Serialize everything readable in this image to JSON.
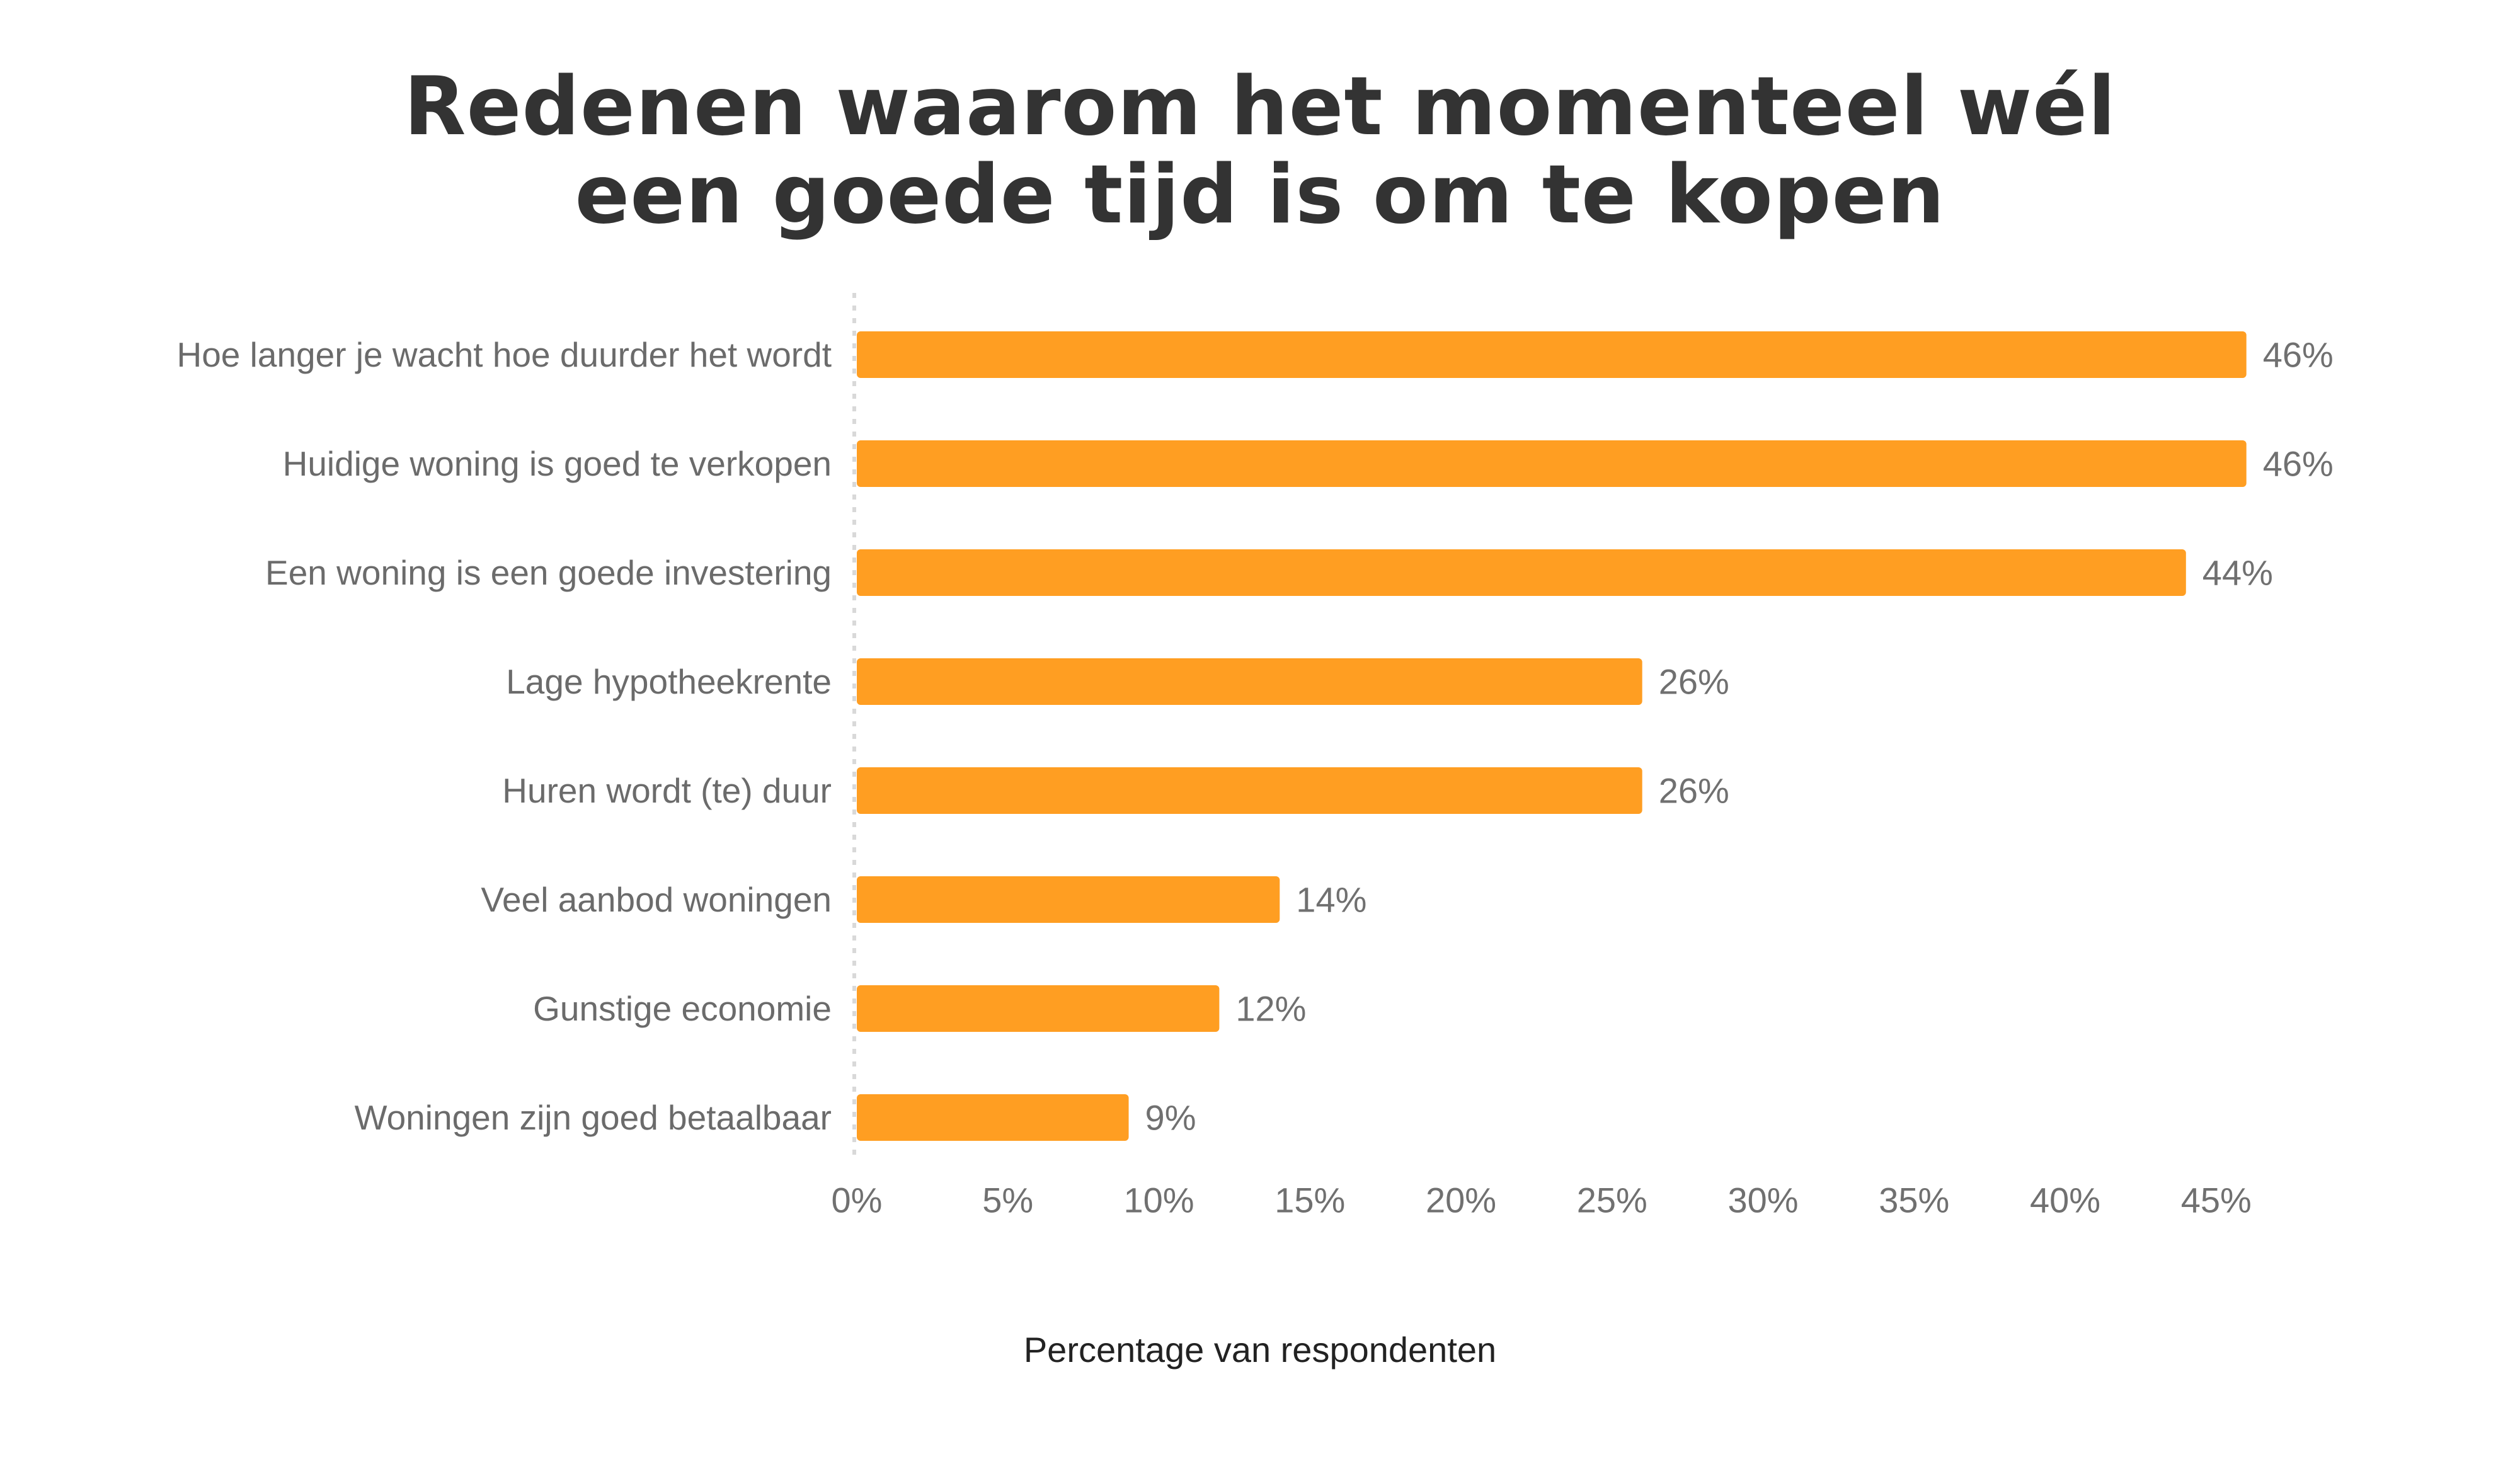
{
  "chart_data": {
    "type": "bar",
    "orientation": "horizontal",
    "title_lines": [
      "Redenen waarom het momenteel wél",
      "een goede tijd is om te kopen"
    ],
    "categories": [
      "Hoe langer je wacht hoe duurder het wordt",
      "Huidige woning is goed te verkopen",
      "Een woning is een goede investering",
      "Lage hypotheekrente",
      "Huren wordt (te) duur",
      "Veel aanbod woningen",
      "Gunstige economie",
      "Woningen zijn goed betaalbaar"
    ],
    "values": [
      46,
      46,
      44,
      26,
      26,
      14,
      12,
      9
    ],
    "data_labels": [
      "46%",
      "46%",
      "44%",
      "26%",
      "26%",
      "14%",
      "12%",
      "9%"
    ],
    "xlabel": "Percentage van respondenten",
    "ylabel": "",
    "xlim": [
      0,
      45
    ],
    "xticks": [
      0,
      5,
      10,
      15,
      20,
      25,
      30,
      35,
      40,
      45
    ],
    "xtick_labels": [
      "0%",
      "5%",
      "10%",
      "15%",
      "20%",
      "25%",
      "30%",
      "35%",
      "40%",
      "45%"
    ],
    "bar_color": "#FF9E22",
    "grid": false,
    "legend": "none"
  }
}
